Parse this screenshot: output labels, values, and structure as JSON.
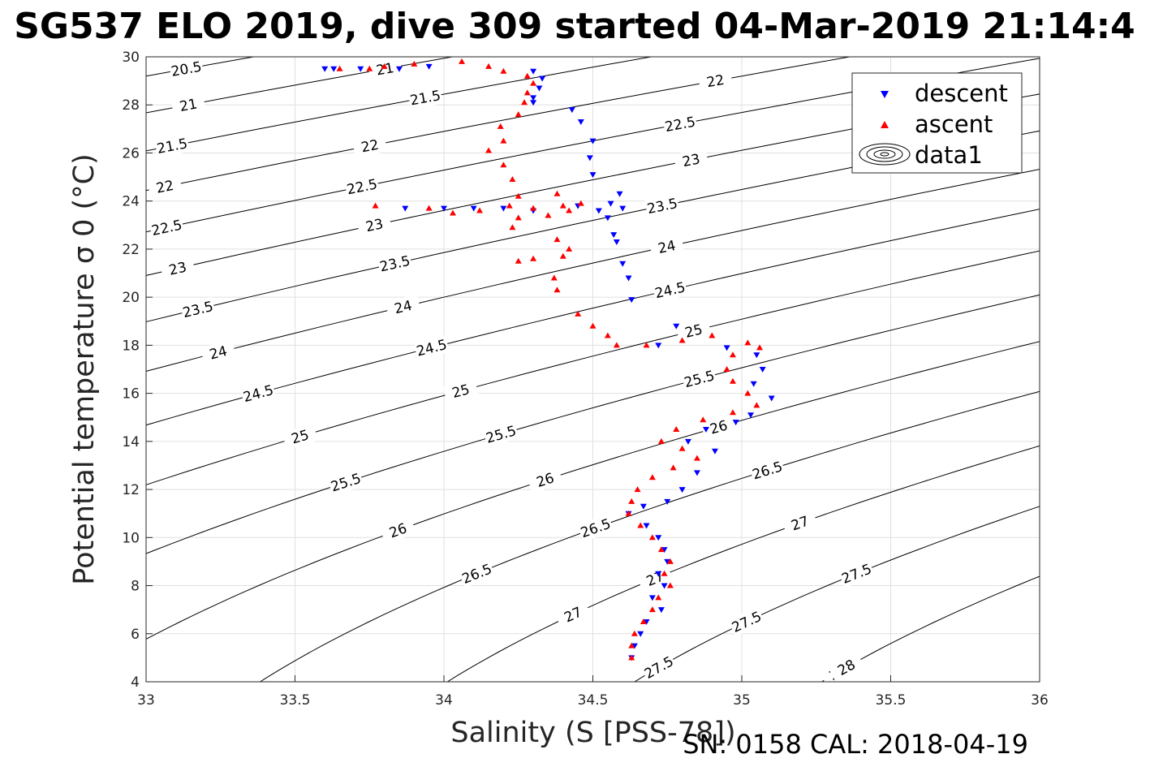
{
  "title": "SG537 ELO 2019, dive 309 started 04-Mar-2019 21:14:4",
  "footer": "SN: 0158  CAL: 2018-04-19",
  "colors": {
    "descent": "#0000ff",
    "ascent": "#ff0000",
    "contour": "#000000",
    "grid": "#e0e0e0"
  },
  "chart_data": {
    "type": "scatter",
    "xlabel": "Salinity (S [PSS-78])",
    "ylabel": "Potential temperature σ 0 (°C)",
    "xlim": [
      33,
      36
    ],
    "ylim": [
      4,
      30
    ],
    "xticks": [
      "33",
      "33.5",
      "34",
      "34.5",
      "35",
      "35.5",
      "36"
    ],
    "yticks": [
      "4",
      "6",
      "8",
      "10",
      "12",
      "14",
      "16",
      "18",
      "20",
      "22",
      "24",
      "26",
      "28",
      "30"
    ],
    "grid": true,
    "legend_position": "top-right",
    "legend": [
      "descent",
      "ascent",
      "data1"
    ],
    "contour_labels": [
      "20.5",
      "21",
      "21.5",
      "22",
      "22.5",
      "23",
      "23.5",
      "24",
      "24.5",
      "25",
      "25.5",
      "26",
      "26.5",
      "27",
      "27.5",
      "28"
    ],
    "series": [
      {
        "name": "descent",
        "marker": "triangle-down",
        "color": "#0000ff",
        "points": [
          [
            33.6,
            29.5
          ],
          [
            33.63,
            29.5
          ],
          [
            33.72,
            29.5
          ],
          [
            33.85,
            29.5
          ],
          [
            33.95,
            29.6
          ],
          [
            34.3,
            29.4
          ],
          [
            34.33,
            29.1
          ],
          [
            34.32,
            28.7
          ],
          [
            34.3,
            28.3
          ],
          [
            34.3,
            28.1
          ],
          [
            34.43,
            27.8
          ],
          [
            34.46,
            27.3
          ],
          [
            34.5,
            26.5
          ],
          [
            34.49,
            25.8
          ],
          [
            34.5,
            25.1
          ],
          [
            34.59,
            24.3
          ],
          [
            34.56,
            23.9
          ],
          [
            34.6,
            23.7
          ],
          [
            34.55,
            23.3
          ],
          [
            34.57,
            22.6
          ],
          [
            34.58,
            22.3
          ],
          [
            34.6,
            21.4
          ],
          [
            34.62,
            20.8
          ],
          [
            34.63,
            19.9
          ],
          [
            34.78,
            18.8
          ],
          [
            34.72,
            18.0
          ],
          [
            34.95,
            17.9
          ],
          [
            35.05,
            17.6
          ],
          [
            35.07,
            17.0
          ],
          [
            35.04,
            16.4
          ],
          [
            35.1,
            15.8
          ],
          [
            35.03,
            15.1
          ],
          [
            34.98,
            14.8
          ],
          [
            34.88,
            14.5
          ],
          [
            34.82,
            14.0
          ],
          [
            34.91,
            13.6
          ],
          [
            34.85,
            12.7
          ],
          [
            34.8,
            12.0
          ],
          [
            34.75,
            11.5
          ],
          [
            34.67,
            11.3
          ],
          [
            34.62,
            11.0
          ],
          [
            34.68,
            10.5
          ],
          [
            34.72,
            10.0
          ],
          [
            34.74,
            9.5
          ],
          [
            34.75,
            9.0
          ],
          [
            34.72,
            8.5
          ],
          [
            34.74,
            8.0
          ],
          [
            34.7,
            7.5
          ],
          [
            34.73,
            7.0
          ],
          [
            34.68,
            6.5
          ],
          [
            34.66,
            6.0
          ],
          [
            34.64,
            5.5
          ],
          [
            34.63,
            5.0
          ],
          [
            33.87,
            23.7
          ],
          [
            34.0,
            23.7
          ],
          [
            34.1,
            23.7
          ],
          [
            34.2,
            23.7
          ],
          [
            34.3,
            23.6
          ],
          [
            34.45,
            23.8
          ],
          [
            34.52,
            23.6
          ]
        ]
      },
      {
        "name": "ascent",
        "marker": "triangle-up",
        "color": "#ff0000",
        "points": [
          [
            33.65,
            29.5
          ],
          [
            33.75,
            29.5
          ],
          [
            33.8,
            29.6
          ],
          [
            33.9,
            29.7
          ],
          [
            34.06,
            29.8
          ],
          [
            34.15,
            29.6
          ],
          [
            34.2,
            29.4
          ],
          [
            34.28,
            29.2
          ],
          [
            34.3,
            28.9
          ],
          [
            34.28,
            28.5
          ],
          [
            34.27,
            28.1
          ],
          [
            34.25,
            27.6
          ],
          [
            34.19,
            27.1
          ],
          [
            34.2,
            26.5
          ],
          [
            34.15,
            26.1
          ],
          [
            34.2,
            25.5
          ],
          [
            34.23,
            24.9
          ],
          [
            34.25,
            24.2
          ],
          [
            34.22,
            23.8
          ],
          [
            34.25,
            23.3
          ],
          [
            34.23,
            22.9
          ],
          [
            34.38,
            24.3
          ],
          [
            34.4,
            23.8
          ],
          [
            34.42,
            23.6
          ],
          [
            34.35,
            23.4
          ],
          [
            34.38,
            22.4
          ],
          [
            34.42,
            22.0
          ],
          [
            34.4,
            21.7
          ],
          [
            34.3,
            21.6
          ],
          [
            34.25,
            21.5
          ],
          [
            34.37,
            20.8
          ],
          [
            34.38,
            20.3
          ],
          [
            34.45,
            19.3
          ],
          [
            34.5,
            18.8
          ],
          [
            34.55,
            18.4
          ],
          [
            34.58,
            18.0
          ],
          [
            34.68,
            18.0
          ],
          [
            34.8,
            18.2
          ],
          [
            34.9,
            18.4
          ],
          [
            35.02,
            18.1
          ],
          [
            35.06,
            17.9
          ],
          [
            34.97,
            17.6
          ],
          [
            34.95,
            17.0
          ],
          [
            34.97,
            16.5
          ],
          [
            35.02,
            16.0
          ],
          [
            35.05,
            15.5
          ],
          [
            34.97,
            15.2
          ],
          [
            34.87,
            14.9
          ],
          [
            34.78,
            14.5
          ],
          [
            34.73,
            14.0
          ],
          [
            34.8,
            13.7
          ],
          [
            34.85,
            13.3
          ],
          [
            34.77,
            12.9
          ],
          [
            34.7,
            12.5
          ],
          [
            34.65,
            12.0
          ],
          [
            34.63,
            11.5
          ],
          [
            34.62,
            11.0
          ],
          [
            34.66,
            10.5
          ],
          [
            34.7,
            10.0
          ],
          [
            34.73,
            9.5
          ],
          [
            34.76,
            9.0
          ],
          [
            34.74,
            8.5
          ],
          [
            34.76,
            8.0
          ],
          [
            34.72,
            7.5
          ],
          [
            34.7,
            7.0
          ],
          [
            34.67,
            6.5
          ],
          [
            34.64,
            6.0
          ],
          [
            34.63,
            5.5
          ],
          [
            34.63,
            5.0
          ],
          [
            33.77,
            23.8
          ],
          [
            33.95,
            23.7
          ],
          [
            34.03,
            23.5
          ],
          [
            34.12,
            23.6
          ],
          [
            34.3,
            23.7
          ],
          [
            34.46,
            23.9
          ]
        ]
      }
    ]
  }
}
